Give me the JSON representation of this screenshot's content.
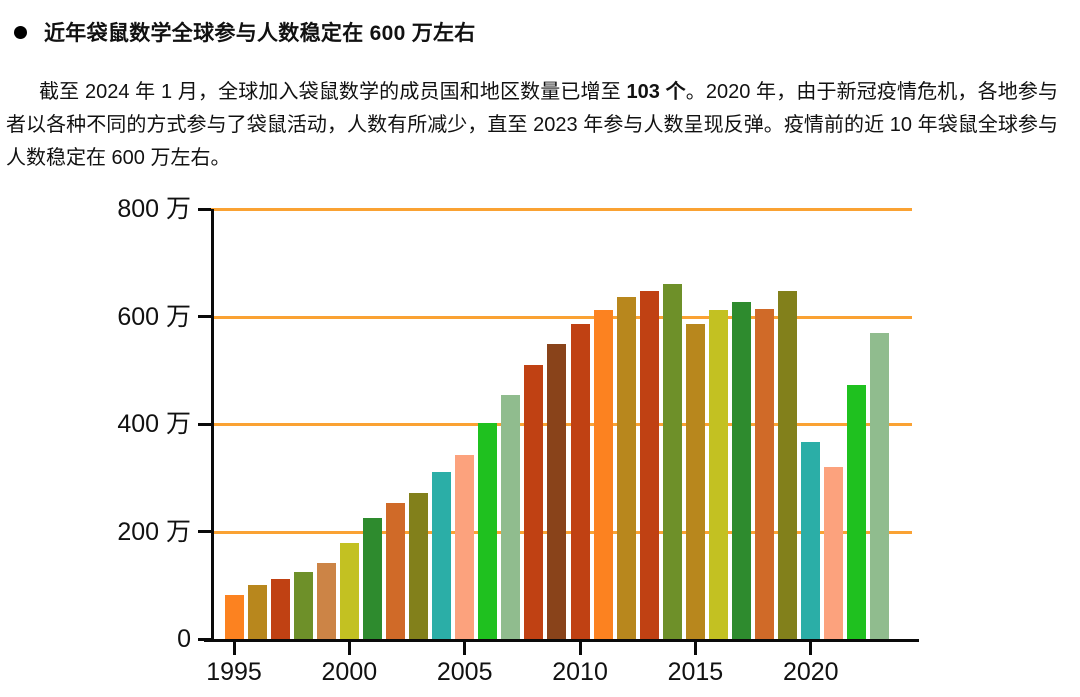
{
  "heading": {
    "bullet_icon": "filled-circle",
    "text": "近年袋鼠数学全球参与人数稳定在 600 万左右"
  },
  "paragraph": {
    "part1": "截至 2024 年 1 月，全球加入袋鼠数学的成员国和地区数量已增至 ",
    "bold": "103 个",
    "part2": "。2020 年，由于新冠疫情危机，各地参与者以各种不同的方式参与了袋鼠活动，人数有所减少，直至 2023 年参与人数呈现反弹。疫情前的近 10 年袋鼠全球参与人数稳定在 600 万左右。"
  },
  "chart_data": {
    "type": "bar",
    "unit": "万",
    "ylim": [
      0,
      800
    ],
    "grid": true,
    "legend_position": "none",
    "x": [
      1995,
      1996,
      1997,
      1998,
      1999,
      2000,
      2001,
      2002,
      2003,
      2004,
      2005,
      2006,
      2007,
      2008,
      2009,
      2010,
      2011,
      2012,
      2013,
      2014,
      2015,
      2016,
      2017,
      2018,
      2019,
      2020,
      2021,
      2022,
      2023
    ],
    "values": [
      82,
      100,
      112,
      125,
      141,
      179,
      225,
      253,
      272,
      311,
      342,
      402,
      454,
      510,
      549,
      586,
      612,
      636,
      647,
      660,
      586,
      612,
      627,
      614,
      647,
      366,
      320,
      473,
      569
    ],
    "bar_colors": [
      "#FC8220",
      "#B8871D",
      "#C04113",
      "#6E9029",
      "#CC8446",
      "#C3C122",
      "#2E8B2E",
      "#D06A28",
      "#82801B",
      "#2BAEA7",
      "#FCA27D",
      "#1FC11F",
      "#90BC8E",
      "#C04113",
      "#89431A",
      "#C04113",
      "#FC8220",
      "#B8871D",
      "#C04113",
      "#6E9029",
      "#B8871D",
      "#C3C122",
      "#2E8B2E",
      "#D06A28",
      "#82801B",
      "#2BAEA7",
      "#FCA27D",
      "#1FC11F",
      "#90BC8E"
    ],
    "y_ticks": [
      {
        "v": 0,
        "label": "0"
      },
      {
        "v": 200,
        "label": "200 万"
      },
      {
        "v": 400,
        "label": "400 万"
      },
      {
        "v": 600,
        "label": "600 万"
      },
      {
        "v": 800,
        "label": "800 万"
      }
    ],
    "x_ticks": [
      1995,
      2000,
      2005,
      2010,
      2015,
      2020
    ],
    "grid_color": "#FAA233",
    "axis_color": "#0A0A0A"
  }
}
